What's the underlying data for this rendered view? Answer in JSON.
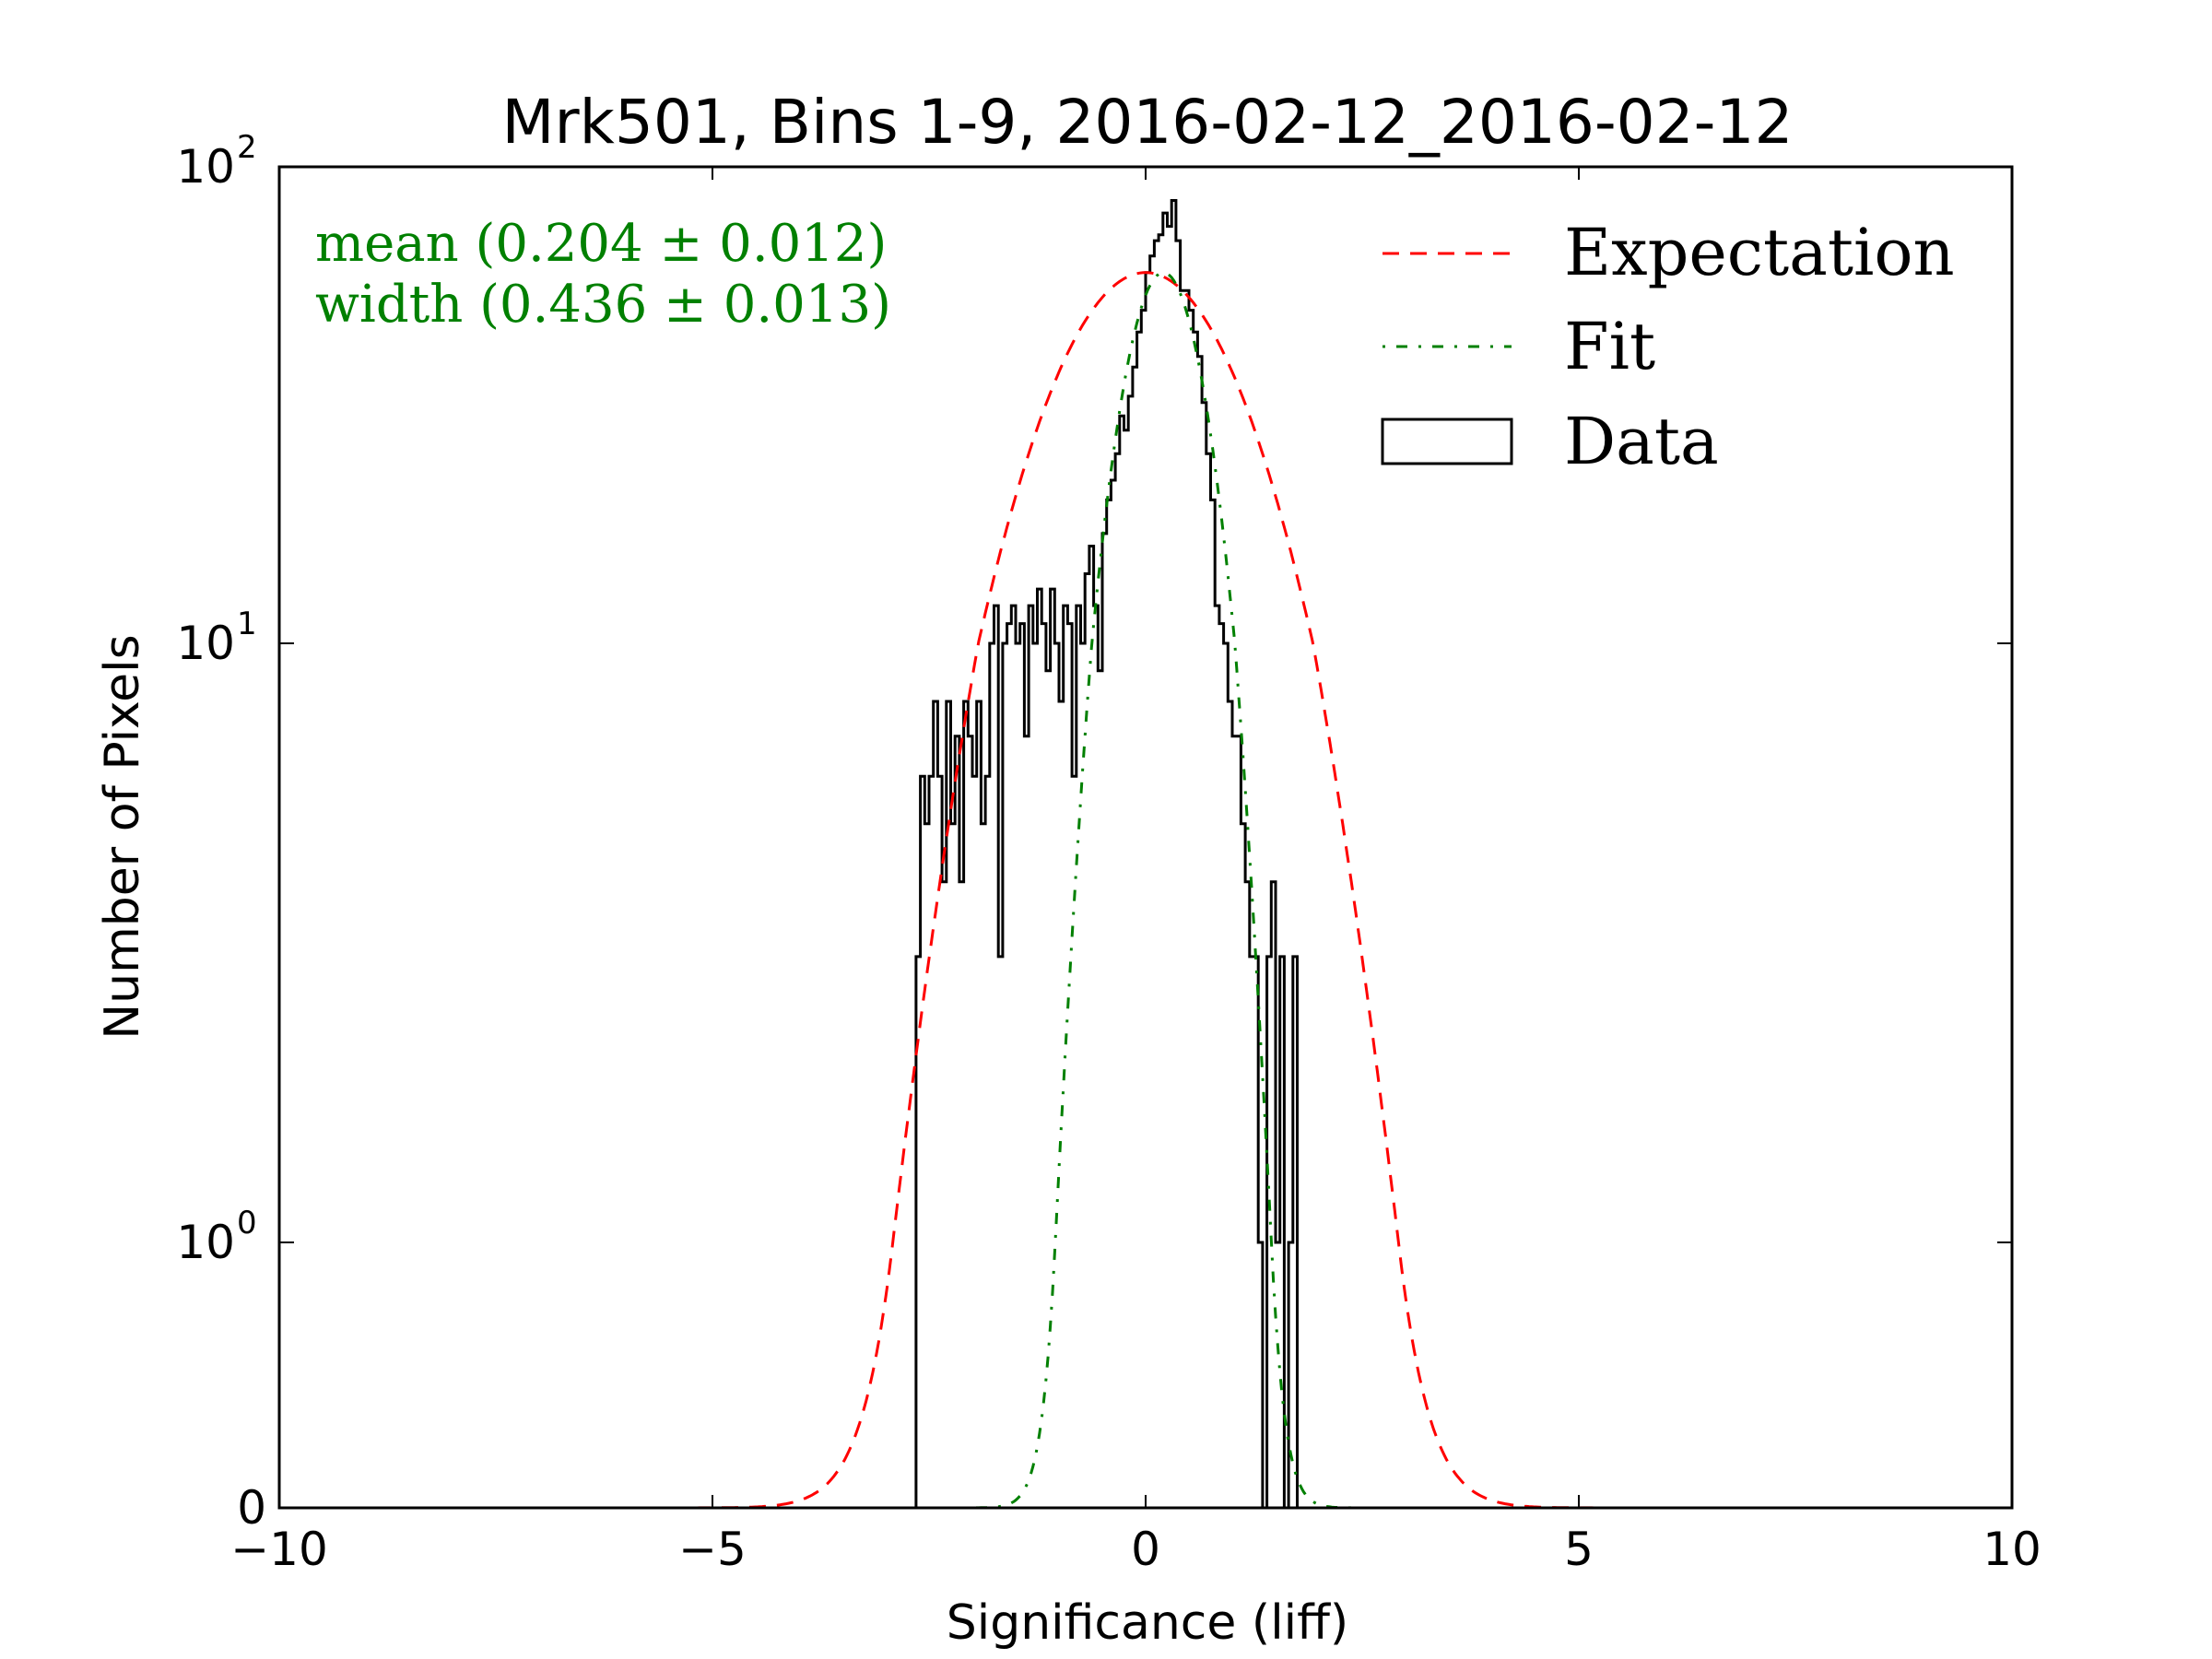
{
  "chart_data": {
    "type": "histogram",
    "title": "Mrk501, Bins 1-9, 2016-02-12_2016-02-12",
    "xlabel": "Significance (liff)",
    "ylabel": "Number of Pixels",
    "xlim": [
      -10,
      10
    ],
    "yscale": "symlog",
    "ylim": [
      0,
      100
    ],
    "grid": false,
    "x_ticks": [
      {
        "value": -10,
        "label": "−10"
      },
      {
        "value": -5,
        "label": "−5"
      },
      {
        "value": 0,
        "label": "0"
      },
      {
        "value": 5,
        "label": "5"
      },
      {
        "value": 10,
        "label": "10"
      }
    ],
    "y_ticks": [
      {
        "value": 0,
        "base": "0",
        "exp": ""
      },
      {
        "value": 1,
        "base": "10",
        "exp": "0"
      },
      {
        "value": 10,
        "base": "10",
        "exp": "1"
      },
      {
        "value": 100,
        "base": "10",
        "exp": "2"
      }
    ],
    "annotations": {
      "mean": "mean (0.204 ± 0.012)",
      "width": "width (0.436 ± 0.013)"
    },
    "legend": {
      "placement": "top-right",
      "entries": [
        {
          "label": "Expectation",
          "style": "dashed",
          "color": "#ff0000"
        },
        {
          "label": "Fit",
          "style": "dashdot",
          "color": "#008000"
        },
        {
          "label": "Data",
          "style": "step",
          "color": "#000000"
        }
      ]
    },
    "expectation": {
      "amplitude": 60,
      "mean": 0.0,
      "sigma": 1.02
    },
    "fit": {
      "amplitude": 60,
      "mean": 0.204,
      "sigma": 0.436
    },
    "histogram": {
      "bin_start": -2.65,
      "bin_width": 0.05,
      "counts": [
        3,
        6,
        5,
        6,
        8,
        6,
        4,
        8,
        5,
        7,
        4,
        8,
        7,
        6,
        8,
        5,
        6,
        10,
        12,
        3,
        10,
        11,
        12,
        10,
        11,
        7,
        12,
        10,
        13,
        11,
        9,
        13,
        10,
        8,
        12,
        11,
        6,
        12,
        10,
        14,
        16,
        12,
        9,
        17,
        20,
        22,
        25,
        30,
        28,
        33,
        38,
        45,
        50,
        60,
        65,
        70,
        72,
        80,
        75,
        85,
        70,
        55,
        55,
        50,
        45,
        40,
        32,
        25,
        20,
        12,
        11,
        10,
        8,
        7,
        7,
        5,
        4,
        3,
        3,
        1,
        0,
        3,
        4,
        1,
        3,
        0,
        1,
        3
      ]
    }
  }
}
